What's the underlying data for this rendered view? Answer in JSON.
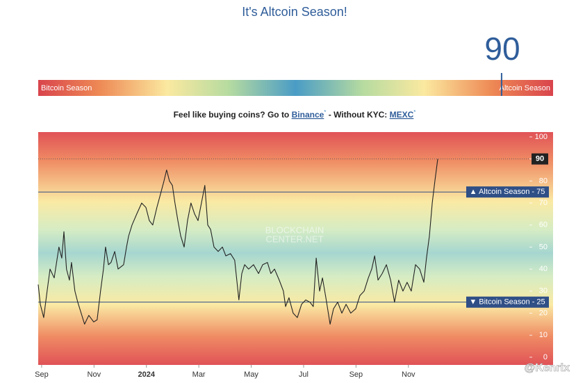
{
  "header": {
    "title": "It's Altcoin Season!"
  },
  "gauge": {
    "value": 90,
    "min": 0,
    "max": 100,
    "left_label": "Bitcoin Season",
    "right_label": "Altcoin Season"
  },
  "promo": {
    "lead": "Feel like buying coins? Go to ",
    "link1": "Binance",
    "mark1": "*",
    "middle": " - Without KYC: ",
    "link2": "MEXC",
    "mark2": "*"
  },
  "chart_data": {
    "type": "line",
    "color": "#222222",
    "watermark": [
      "BLOCKCHAIN",
      "CENTER.NET"
    ],
    "x": [
      -0.13,
      -0.05,
      0.08,
      0.21,
      0.32,
      0.48,
      0.66,
      0.77,
      0.85,
      0.95,
      1.06,
      1.14,
      1.27,
      1.38,
      1.51,
      1.64,
      1.8,
      1.99,
      2.12,
      2.25,
      2.36,
      2.44,
      2.55,
      2.65,
      2.79,
      2.92,
      3.13,
      3.24,
      3.32,
      3.45,
      3.63,
      3.82,
      3.98,
      4.11,
      4.24,
      4.4,
      4.56,
      4.67,
      4.77,
      4.88,
      4.99,
      5.09,
      5.2,
      5.31,
      5.44,
      5.57,
      5.7,
      5.84,
      5.97,
      6.1,
      6.23,
      6.34,
      6.45,
      6.58,
      6.74,
      6.9,
      7.03,
      7.21,
      7.37,
      7.53,
      7.64,
      7.75,
      7.9,
      8.09,
      8.28,
      8.44,
      8.62,
      8.75,
      8.89,
      9.07,
      9.23,
      9.31,
      9.44,
      9.6,
      9.76,
      9.92,
      10.08,
      10.24,
      10.37,
      10.48,
      10.61,
      10.72,
      10.85,
      11.01,
      11.14,
      11.3,
      11.46,
      11.62,
      11.8,
      11.99,
      12.15,
      12.31,
      12.47,
      12.6,
      12.71,
      12.84,
      13,
      13.16,
      13.32,
      13.47,
      13.63,
      13.79,
      13.95,
      14.11,
      14.27,
      14.43,
      14.59,
      14.69,
      14.8,
      14.91,
      15.01,
      15.12
    ],
    "values": [
      33,
      24,
      18,
      30,
      40,
      36,
      50,
      45,
      57,
      40,
      35,
      43,
      30,
      25,
      20,
      15,
      19,
      16,
      17,
      30,
      40,
      50,
      42,
      43,
      48,
      40,
      42,
      50,
      55,
      60,
      65,
      70,
      68,
      62,
      60,
      68,
      75,
      80,
      85,
      80,
      78,
      70,
      62,
      55,
      50,
      62,
      70,
      65,
      62,
      70,
      78,
      60,
      58,
      50,
      48,
      50,
      46,
      47,
      44,
      26,
      38,
      42,
      40,
      42,
      38,
      42,
      43,
      38,
      40,
      35,
      30,
      23,
      27,
      20,
      18,
      24,
      26,
      25,
      23,
      45,
      30,
      36,
      27,
      15,
      22,
      25,
      20,
      24,
      20,
      22,
      28,
      30,
      36,
      40,
      46,
      35,
      38,
      42,
      35,
      25,
      35,
      30,
      34,
      30,
      42,
      40,
      34,
      45,
      55,
      70,
      80,
      90
    ],
    "current": 90,
    "reference_lines": [
      {
        "value": 75,
        "label": "▲ Altcoin Season - 75"
      },
      {
        "value": 25,
        "label": "▼ Bitcoin Season - 25"
      }
    ],
    "xlim": [
      -0.13,
      18.62
    ],
    "ylim": [
      -3.5,
      102.2
    ],
    "yticks": [
      0,
      10,
      20,
      30,
      40,
      50,
      60,
      70,
      80,
      90,
      100
    ],
    "xticks": [
      {
        "value": 0,
        "label": "Sep"
      },
      {
        "value": 2,
        "label": "Nov"
      },
      {
        "value": 4,
        "label": "2024"
      },
      {
        "value": 6,
        "label": "Mar"
      },
      {
        "value": 8,
        "label": "May"
      },
      {
        "value": 10,
        "label": "Jul"
      },
      {
        "value": 12,
        "label": "Sep"
      },
      {
        "value": 14,
        "label": "Nov"
      }
    ]
  },
  "corner_watermark": "@Kenrix"
}
